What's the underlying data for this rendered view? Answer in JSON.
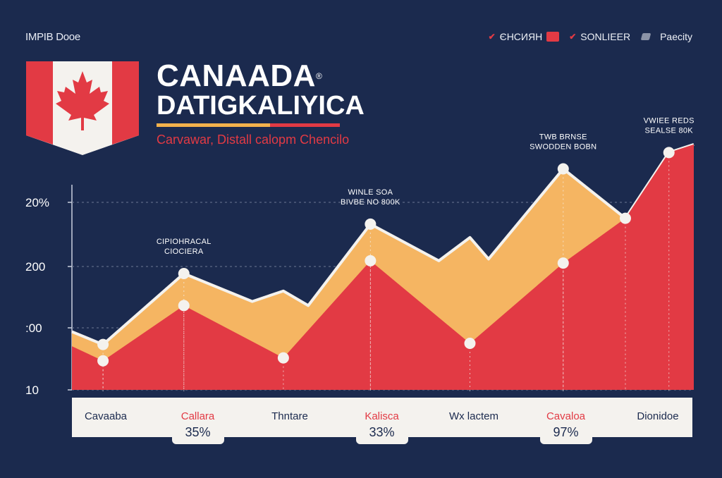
{
  "header": {
    "tag": "IMPIB Dooe",
    "title_line1": "CANAADA",
    "title_mark": "®",
    "title_line2": "DATIGKALIYICA",
    "subtitle": "Carvawar, Distall calopm Chencilo"
  },
  "legend": [
    {
      "mark": "✔",
      "label": "ЄНСИЯН",
      "color": "#e23a44"
    },
    {
      "mark": "✔",
      "label": "SONLIEER",
      "color": "#e23a44"
    },
    {
      "mark": "",
      "label": "Paecity",
      "color": "#8b93a7"
    }
  ],
  "colors": {
    "background": "#1b2a4e",
    "upper_area": "#f5b562",
    "lower_area": "#e23a44",
    "bar": "#f4f2ee"
  },
  "chart_data": {
    "type": "area",
    "y_tick_labels": [
      "20%",
      "200",
      ":00",
      "10"
    ],
    "grid": "dashed horizontal",
    "legend_position": "top-right",
    "categories": [
      "Cavaaba",
      "Callara",
      "Thntare",
      "Kalisca",
      "Wx lactem",
      "Cavaloa",
      "Dionidoe"
    ],
    "category_highlight": [
      false,
      true,
      false,
      true,
      false,
      true,
      false
    ],
    "category_values": [
      "",
      "35%",
      "",
      "33%",
      "",
      "97%",
      ""
    ],
    "series": [
      {
        "values": [
          {
            "x": 0.0,
            "y": 1.0
          },
          {
            "x": 0.05,
            "y": 0.78
          },
          {
            "x": 0.18,
            "y": 2.0
          },
          {
            "x": 0.29,
            "y": 1.52
          },
          {
            "x": 0.34,
            "y": 1.7
          },
          {
            "x": 0.38,
            "y": 1.45
          },
          {
            "x": 0.48,
            "y": 2.85
          },
          {
            "x": 0.59,
            "y": 2.22
          },
          {
            "x": 0.64,
            "y": 2.62
          },
          {
            "x": 0.67,
            "y": 2.25
          },
          {
            "x": 0.79,
            "y": 3.8
          },
          {
            "x": 0.89,
            "y": 2.95
          },
          {
            "x": 0.96,
            "y": 4.08
          },
          {
            "x": 1.0,
            "y": 4.22
          }
        ]
      },
      {
        "values": [
          {
            "x": 0.0,
            "y": 0.75
          },
          {
            "x": 0.05,
            "y": 0.5
          },
          {
            "x": 0.18,
            "y": 1.45
          },
          {
            "x": 0.34,
            "y": 0.55
          },
          {
            "x": 0.48,
            "y": 2.22
          },
          {
            "x": 0.64,
            "y": 0.8
          },
          {
            "x": 0.79,
            "y": 2.18
          },
          {
            "x": 0.89,
            "y": 2.95
          },
          {
            "x": 0.96,
            "y": 4.08
          },
          {
            "x": 1.0,
            "y": 4.22
          }
        ]
      }
    ],
    "markers": [
      {
        "x": 0.05,
        "y": 0.78
      },
      {
        "x": 0.05,
        "y": 0.5
      },
      {
        "x": 0.18,
        "y": 2.0
      },
      {
        "x": 0.18,
        "y": 1.45
      },
      {
        "x": 0.34,
        "y": 0.55
      },
      {
        "x": 0.48,
        "y": 2.85
      },
      {
        "x": 0.48,
        "y": 2.22
      },
      {
        "x": 0.64,
        "y": 0.8
      },
      {
        "x": 0.79,
        "y": 3.8
      },
      {
        "x": 0.79,
        "y": 2.18
      },
      {
        "x": 0.89,
        "y": 2.95
      },
      {
        "x": 0.96,
        "y": 4.08
      }
    ],
    "annotations": [
      {
        "x": 0.18,
        "y": 2.0,
        "lines": [
          "CIPIOHRACAL",
          "CIOCIERA"
        ]
      },
      {
        "x": 0.48,
        "y": 2.85,
        "lines": [
          "WINLE SOA",
          "BIVBE NO 800K"
        ]
      },
      {
        "x": 0.79,
        "y": 3.8,
        "lines": [
          "TWB BRNSE",
          "SWODDEN BOBN"
        ]
      },
      {
        "x": 0.96,
        "y": 4.08,
        "lines": [
          "VWIEE REDS",
          "SEALSE 80K"
        ]
      }
    ],
    "ylim": [
      0,
      4.4
    ]
  }
}
